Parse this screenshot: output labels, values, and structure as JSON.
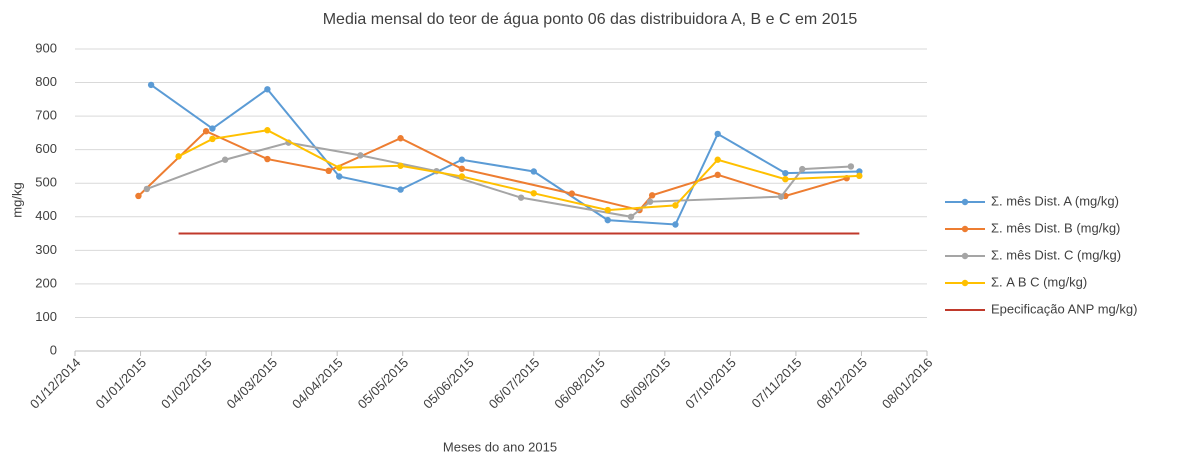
{
  "chart_data": {
    "type": "line",
    "title": "Media mensal do teor de água ponto 06 das distribuidora A,  B e C em 2015",
    "x_label": "Meses do ano 2015",
    "y_label": "mg/kg",
    "xlim": [
      "01/12/2014",
      "08/01/2016"
    ],
    "xticks": [
      "01/12/2014",
      "01/01/2015",
      "01/02/2015",
      "04/03/2015",
      "04/04/2015",
      "05/05/2015",
      "05/06/2015",
      "06/07/2015",
      "06/08/2015",
      "06/09/2015",
      "07/10/2015",
      "07/11/2015",
      "08/12/2015",
      "08/01/2016"
    ],
    "ylim": [
      0,
      900
    ],
    "yticks": [
      0,
      100,
      200,
      300,
      400,
      500,
      600,
      700,
      800,
      900
    ],
    "grid": true,
    "legend": "right",
    "series": [
      {
        "name": "Σ. mês Dist.  A (mg/kg)",
        "color": "#5b9bd5",
        "marker": true,
        "x": [
          "06/01/2015",
          "04/02/2015",
          "02/03/2015",
          "05/04/2015",
          "04/05/2015",
          "02/06/2015",
          "06/07/2015",
          "10/08/2015",
          "11/09/2015",
          "01/10/2015",
          "02/11/2015",
          "07/12/2015"
        ],
        "values": [
          793,
          663,
          780,
          520,
          481,
          570,
          535,
          390,
          377,
          647,
          530,
          535
        ]
      },
      {
        "name": "Σ. mês Dist.  B (mg/kg)",
        "color": "#ed7d31",
        "marker": true,
        "x": [
          "31/12/2014",
          "01/02/2015",
          "02/03/2015",
          "31/03/2015",
          "04/05/2015",
          "02/06/2015",
          "24/07/2015",
          "25/08/2015",
          "31/08/2015",
          "01/10/2015",
          "02/11/2015",
          "01/12/2015"
        ],
        "values": [
          462,
          655,
          572,
          537,
          634,
          543,
          469,
          420,
          464,
          525,
          462,
          515
        ]
      },
      {
        "name": "Σ. mês Dist.  C (mg/kg)",
        "color": "#a5a5a5",
        "marker": true,
        "x": [
          "04/01/2015",
          "10/02/2015",
          "12/03/2015",
          "15/04/2015",
          "21/05/2015",
          "30/06/2015",
          "21/08/2015",
          "30/08/2015",
          "31/10/2015",
          "10/11/2015",
          "03/12/2015"
        ],
        "values": [
          483,
          570,
          621,
          583,
          536,
          457,
          400,
          445,
          460,
          542,
          550
        ]
      },
      {
        "name": "Σ.  A B C (mg/kg)",
        "color": "#ffc000",
        "marker": true,
        "x": [
          "19/01/2015",
          "04/02/2015",
          "02/03/2015",
          "05/04/2015",
          "04/05/2015",
          "02/06/2015",
          "06/07/2015",
          "10/08/2015",
          "11/09/2015",
          "01/10/2015",
          "02/11/2015",
          "07/12/2015"
        ],
        "values": [
          580,
          632,
          658,
          546,
          552,
          520,
          470,
          420,
          434,
          570,
          512,
          522
        ]
      },
      {
        "name": "Epecificação ANP mg/kg)",
        "color": "#c0392b",
        "marker": false,
        "x": [
          "19/01/2015",
          "07/12/2015"
        ],
        "values": [
          350,
          350
        ]
      }
    ]
  }
}
